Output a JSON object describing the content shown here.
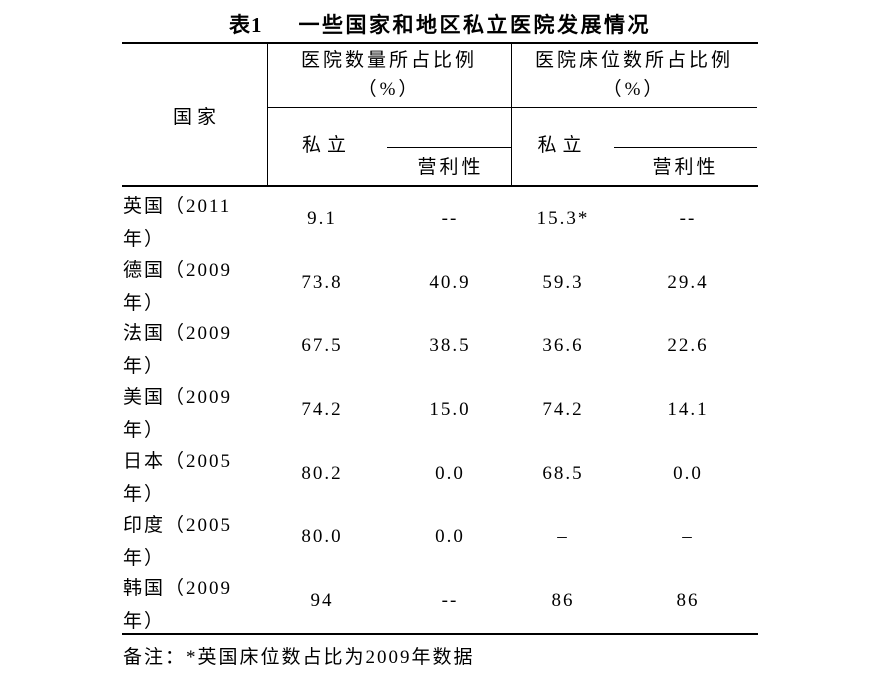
{
  "colors": {
    "background": "#ffffff",
    "text": "#000000",
    "rule": "#000000"
  },
  "title": {
    "label": "表1",
    "text": "一些国家和地区私立医院发展情况"
  },
  "chart_data": {
    "type": "table",
    "title": "表1 一些国家和地区私立医院发展情况",
    "column_groups": [
      "医院数量所占比例（%）",
      "医院床位数所占比例（%）"
    ],
    "columns": [
      "国家",
      "医院数量所占比例(%) 私立",
      "医院数量所占比例(%) 营利性",
      "医院床位数所占比例(%) 私立",
      "医院床位数所占比例(%) 营利性"
    ],
    "rows": [
      [
        "英国（2011年）",
        "9.1",
        "--",
        "15.3*",
        "--"
      ],
      [
        "德国（2009年）",
        "73.8",
        "40.9",
        "59.3",
        "29.4"
      ],
      [
        "法国（2009年）",
        "67.5",
        "38.5",
        "36.6",
        "22.6"
      ],
      [
        "美国（2009年）",
        "74.2",
        "15.0",
        "74.2",
        "14.1"
      ],
      [
        "日本（2005年）",
        "80.2",
        "0.0",
        "68.5",
        "0.0"
      ],
      [
        "印度（2005年）",
        "80.0",
        "0.0",
        "–",
        "–"
      ],
      [
        "韩国（2009年）",
        "94",
        "--",
        "86",
        "86"
      ]
    ]
  },
  "table": {
    "country_header": "国家",
    "groups": [
      {
        "title": "医院数量所占比例",
        "unit": "（%）",
        "private_label": "私立",
        "profit_label": "营利性"
      },
      {
        "title": "医院床位数所占比例",
        "unit": "（%）",
        "private_label": "私立",
        "profit_label": "营利性"
      }
    ],
    "rows": [
      {
        "country_line1": "英国（2011",
        "country_line2": "年）",
        "values": [
          "9.1",
          "--",
          "15.3*",
          "--"
        ]
      },
      {
        "country_line1": "德国（2009",
        "country_line2": "年）",
        "values": [
          "73.8",
          "40.9",
          "59.3",
          "29.4"
        ]
      },
      {
        "country_line1": "法国（2009",
        "country_line2": "年）",
        "values": [
          "67.5",
          "38.5",
          "36.6",
          "22.6"
        ]
      },
      {
        "country_line1": "美国（2009",
        "country_line2": "年）",
        "values": [
          "74.2",
          "15.0",
          "74.2",
          "14.1"
        ]
      },
      {
        "country_line1": "日本（2005",
        "country_line2": "年）",
        "values": [
          "80.2",
          "0.0",
          "68.5",
          "0.0"
        ]
      },
      {
        "country_line1": "印度（2005",
        "country_line2": "年）",
        "values": [
          "80.0",
          "0.0",
          "–",
          "–"
        ]
      },
      {
        "country_line1": "韩国（2009",
        "country_line2": "年）",
        "values": [
          "94",
          "--",
          "86",
          "86"
        ]
      }
    ],
    "footnote": "备注：*英国床位数占比为2009年数据"
  }
}
